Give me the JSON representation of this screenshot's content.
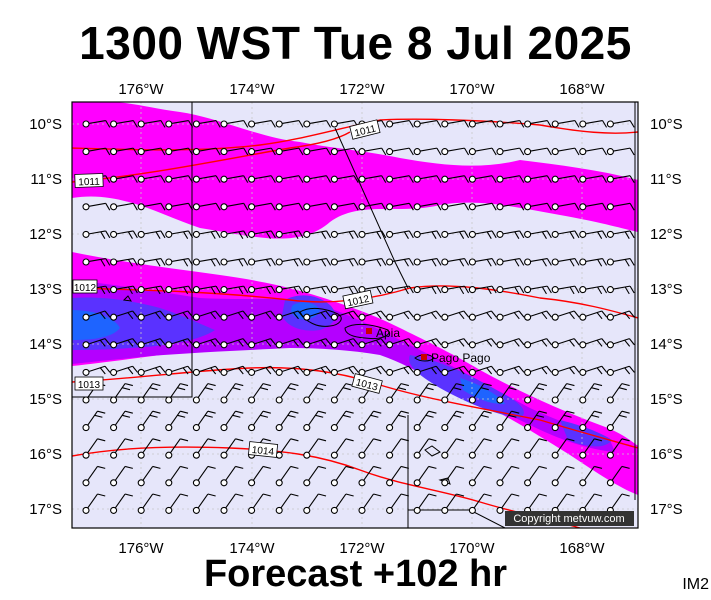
{
  "header": {
    "title": "1300 WST Tue 8 Jul 2025"
  },
  "footer": {
    "forecast": "Forecast +102 hr",
    "code": "IM2"
  },
  "map": {
    "copyright": "Copyright metvuw.com",
    "lon_ticks": [
      "176°W",
      "174°W",
      "172°W",
      "170°W",
      "168°W"
    ],
    "lat_ticks": [
      "10°S",
      "11°S",
      "12°S",
      "13°S",
      "14°S",
      "15°S",
      "16°S",
      "17°S"
    ],
    "places": [
      {
        "name": "Apia",
        "color": "#cc0000"
      },
      {
        "name": "Pago Pago",
        "color": "#cc0000"
      }
    ],
    "isobars": [
      "1011",
      "1011",
      "1012",
      "1012",
      "1013",
      "1013",
      "1014"
    ],
    "colors": {
      "background": "#e6e6fa",
      "rain_light": "#ff00ff",
      "rain_mid": "#b400ff",
      "rain_heavy": "#5a32ff",
      "rain_core": "#1e64ff",
      "isobar": "#ff0000"
    }
  }
}
